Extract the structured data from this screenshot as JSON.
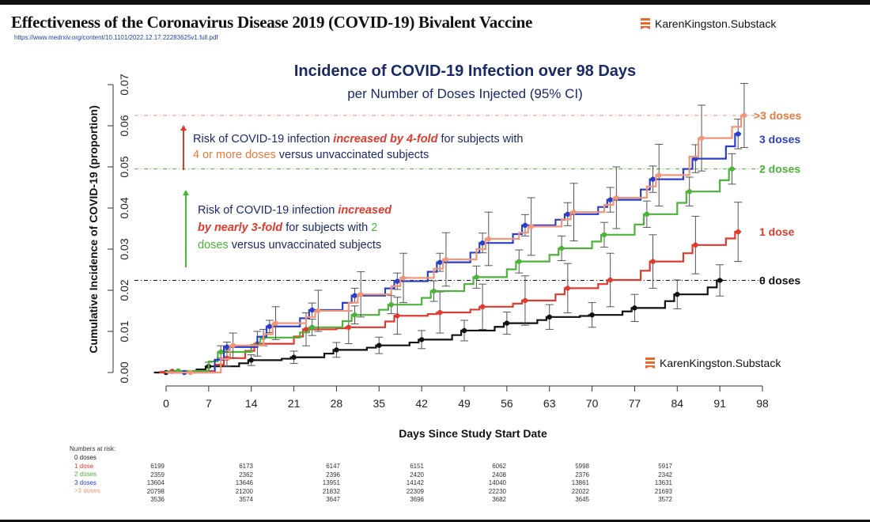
{
  "header": {
    "title": "Effectiveness of the Coronavirus Disease 2019 (COVID-19) Bivalent Vaccine",
    "url": "https://www.medrxiv.org/content/10.1101/2022.12.17.22283625v1.full.pdf",
    "brand": "KarenKingston.Substack"
  },
  "annotations": {
    "a1": [
      "Risk of COVID-19 infection ",
      "increased by 4-fold",
      " for subjects with",
      "4 or more doses",
      " versus unvaccinated subjects"
    ],
    "a2": [
      "Risk of COVID-19 infection ",
      "increased",
      "by nearly 3-fold",
      " for subjects with ",
      "2",
      "doses",
      " versus unvaccinated subjects"
    ]
  },
  "colors": {
    "d0": "#111111",
    "d1": "#e03a2f",
    "d2": "#4cb33a",
    "d3": "#2a3fc9",
    "d4": "#f0957a",
    "label4": "#e8793a",
    "title": "#1a2a66"
  },
  "chart_data": {
    "type": "line",
    "title": "Incidence of COVID-19 Infection over 98 Days",
    "subtitle": "per Number of Doses Injected (95% CI)",
    "xlabel": "Days Since Study Start Date",
    "ylabel": "Cumulative Incidence of COVID-19 (proportion)",
    "xlim": [
      0,
      98
    ],
    "ylim": [
      0,
      0.07
    ],
    "xticks": [
      "0",
      "7",
      "14",
      "21",
      "28",
      "35",
      "42",
      "49",
      "56",
      "63",
      "70",
      "77",
      "84",
      "91",
      "98"
    ],
    "yticks": [
      "0.00",
      "0.01",
      "0.02",
      "0.03",
      "0.04",
      "0.05",
      "0.06",
      "0.07"
    ],
    "series": [
      {
        "name": "0 doses",
        "key": "d0",
        "x": [
          0,
          7,
          14,
          21,
          28,
          35,
          42,
          49,
          56,
          63,
          70,
          77,
          84,
          91
        ],
        "y": [
          0,
          0.0015,
          0.003,
          0.0037,
          0.0055,
          0.0066,
          0.008,
          0.0102,
          0.012,
          0.0135,
          0.014,
          0.0157,
          0.019,
          0.0224
        ],
        "err": [
          0,
          0.001,
          0.0013,
          0.0015,
          0.0018,
          0.002,
          0.0022,
          0.0025,
          0.0027,
          0.003,
          0.003,
          0.0033,
          0.0035,
          0.0038
        ]
      },
      {
        "name": "1 dose",
        "key": "d1",
        "x": [
          1,
          10,
          15,
          23,
          30,
          38,
          45,
          52,
          59,
          66,
          73,
          80,
          87,
          94
        ],
        "y": [
          0.0003,
          0.0035,
          0.007,
          0.0105,
          0.011,
          0.0138,
          0.0146,
          0.016,
          0.0175,
          0.0205,
          0.0225,
          0.027,
          0.031,
          0.0342
        ],
        "err": [
          0.0005,
          0.002,
          0.003,
          0.004,
          0.004,
          0.0045,
          0.005,
          0.0055,
          0.006,
          0.006,
          0.0065,
          0.0065,
          0.007,
          0.0072
        ]
      },
      {
        "name": "2 doses",
        "key": "d2",
        "x": [
          2,
          9,
          16,
          24,
          31,
          37,
          44,
          51,
          58,
          65,
          72,
          79,
          86,
          93
        ],
        "y": [
          0.0004,
          0.005,
          0.0085,
          0.011,
          0.014,
          0.0165,
          0.0198,
          0.0232,
          0.027,
          0.0302,
          0.0335,
          0.0385,
          0.044,
          0.0495
        ],
        "err": [
          0.0005,
          0.0015,
          0.002,
          0.002,
          0.0022,
          0.0022,
          0.0025,
          0.0027,
          0.0028,
          0.003,
          0.003,
          0.0032,
          0.0035,
          0.0037
        ]
      },
      {
        "name": "3 doses",
        "key": "d3",
        "x": [
          3,
          10,
          17,
          24,
          31,
          38,
          45,
          52,
          59,
          66,
          73,
          80,
          87,
          94
        ],
        "y": [
          0,
          0.0062,
          0.0112,
          0.0152,
          0.0187,
          0.0222,
          0.0268,
          0.0315,
          0.0358,
          0.0385,
          0.042,
          0.047,
          0.052,
          0.058
        ],
        "err": [
          0.0004,
          0.0012,
          0.0015,
          0.0017,
          0.0018,
          0.002,
          0.0022,
          0.0024,
          0.0026,
          0.0028,
          0.003,
          0.0032,
          0.0034,
          0.0036
        ]
      },
      {
        "name": ">3 doses",
        "key": "d4",
        "x": [
          4,
          11,
          18,
          25,
          32,
          39,
          46,
          53,
          60,
          67,
          74,
          81,
          88,
          95
        ],
        "y": [
          0,
          0.0066,
          0.012,
          0.015,
          0.019,
          0.023,
          0.0275,
          0.0325,
          0.0355,
          0.039,
          0.0425,
          0.048,
          0.057,
          0.0625
        ],
        "err": [
          0.0006,
          0.003,
          0.004,
          0.005,
          0.0055,
          0.006,
          0.0065,
          0.0065,
          0.007,
          0.007,
          0.0075,
          0.0075,
          0.008,
          0.0078
        ]
      }
    ],
    "reference_lines": [
      {
        "key": "d4",
        "y": 0.0625
      },
      {
        "key": "d2",
        "y": 0.0495
      },
      {
        "key": "d0",
        "y": 0.0224
      }
    ],
    "numbers_at_risk": {
      "label": "Numbers at risk:",
      "rows": [
        {
          "name": "0 doses",
          "key": "d0",
          "values": [
            "6199",
            "6173",
            "6147",
            "6151",
            "6062",
            "5998",
            "5917"
          ]
        },
        {
          "name": "1 dose",
          "key": "d1",
          "values": [
            "2359",
            "2362",
            "2396",
            "2420",
            "2408",
            "2376",
            "2342"
          ]
        },
        {
          "name": "2 doses",
          "key": "d2",
          "values": [
            "13604",
            "13646",
            "13951",
            "14142",
            "14040",
            "13861",
            "13631"
          ]
        },
        {
          "name": "3 doses",
          "key": "d3",
          "values": [
            "20798",
            "21200",
            "21832",
            "22309",
            "22230",
            "22022",
            "21693"
          ]
        },
        {
          "name": ">3 doses",
          "key": "d4",
          "values": [
            "3536",
            "3574",
            "3647",
            "3696",
            "3682",
            "3645",
            "3572"
          ]
        }
      ]
    }
  }
}
